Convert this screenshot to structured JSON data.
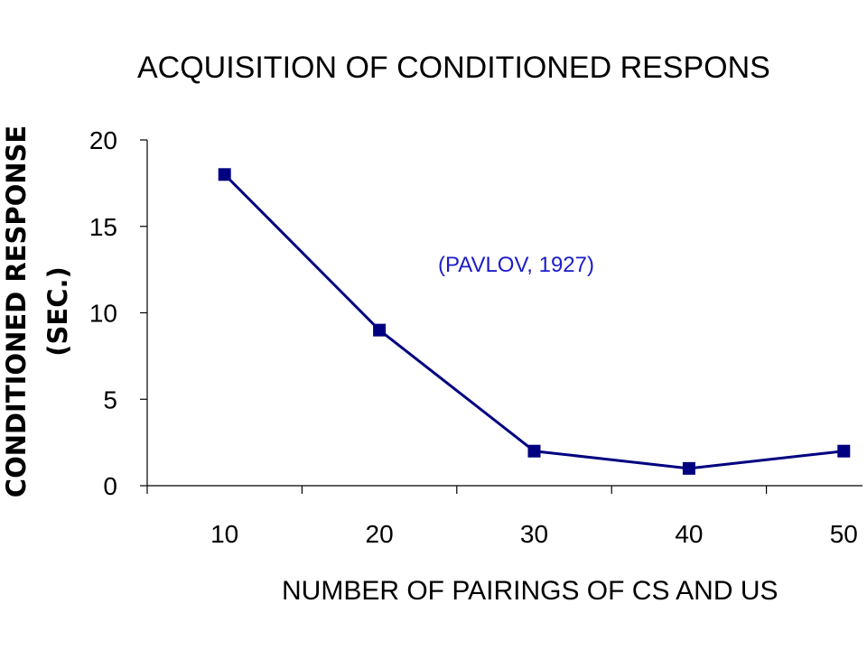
{
  "chart_data": {
    "type": "line",
    "title": "ACQUISITION OF CONDITIONED RESPONS",
    "xlabel": "NUMBER OF PAIRINGS OF CS AND US",
    "ylabel_line1": "CONDITIONED RESPONSE",
    "ylabel_line2": "(SEC.)",
    "annotation": "(PAVLOV, 1927)",
    "categories": [
      "10",
      "20",
      "30",
      "40",
      "50"
    ],
    "series": [
      {
        "values": [
          18,
          9,
          2,
          1,
          2
        ]
      }
    ],
    "ylim": [
      0,
      20
    ],
    "yticks": [
      "0",
      "5",
      "10",
      "15",
      "20"
    ],
    "grid": false,
    "marker": "square",
    "colors": {
      "series": "#000080",
      "annotation": "#1c1cc8"
    }
  }
}
